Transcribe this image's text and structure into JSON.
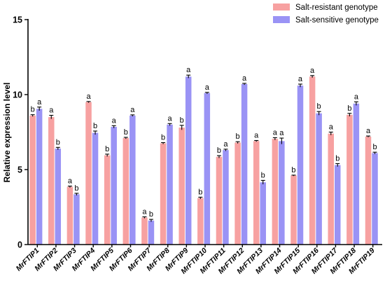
{
  "chart_data": {
    "type": "bar",
    "title": "",
    "xlabel": "",
    "ylabel": "Relative expression level",
    "ylim": [
      0,
      15
    ],
    "yticks": [
      0,
      5,
      10,
      15
    ],
    "grid": false,
    "legend_position": "top-right",
    "categories": [
      "MrFTIP1",
      "MrFTIP2",
      "MrFTIP3",
      "MrFTIP4",
      "MrFTIP5",
      "MrFTIP6",
      "MrFTIP7",
      "MrFTIP8",
      "MrFTIP9",
      "MrFTIP10",
      "MrFTIP11",
      "MrFTIP12",
      "MrFTIP13",
      "MrFTIP14",
      "MrFTIP15",
      "MrFTIP16",
      "MrFTIP17",
      "MrFTIP18",
      "MrFTIP19"
    ],
    "series": [
      {
        "name": "Salt-resistant genotype",
        "color": "#f7a1a1",
        "values": [
          8.6,
          8.5,
          3.85,
          9.5,
          5.95,
          7.1,
          1.8,
          6.75,
          7.8,
          3.1,
          5.85,
          6.8,
          6.9,
          7.05,
          4.6,
          11.2,
          7.4,
          8.65,
          7.2
        ],
        "errors": [
          0.06,
          0.12,
          0.05,
          0.04,
          0.08,
          0.05,
          0.05,
          0.05,
          0.15,
          0.06,
          0.08,
          0.06,
          0.04,
          0.08,
          0.03,
          0.07,
          0.1,
          0.1,
          0.04
        ],
        "significance": [
          "b",
          "a",
          "a",
          "a",
          "b",
          "b",
          "a",
          "b",
          "b",
          "b",
          "b",
          "b",
          "a",
          "a",
          "b",
          "a",
          "a",
          "b",
          "a"
        ]
      },
      {
        "name": "Salt-sensitive genotype",
        "color": "#9a93f5",
        "values": [
          9.05,
          6.4,
          3.35,
          7.45,
          7.85,
          8.6,
          1.6,
          8.0,
          11.2,
          10.1,
          6.3,
          10.7,
          4.15,
          6.9,
          10.6,
          8.75,
          5.3,
          9.4,
          6.1
        ],
        "errors": [
          0.12,
          0.08,
          0.07,
          0.12,
          0.08,
          0.05,
          0.08,
          0.07,
          0.1,
          0.05,
          0.06,
          0.05,
          0.13,
          0.2,
          0.1,
          0.12,
          0.1,
          0.12,
          0.06
        ],
        "significance": [
          "a",
          "b",
          "b",
          "b",
          "a",
          "a",
          "b",
          "a",
          "a",
          "a",
          "a",
          "a",
          "b",
          "a",
          "a",
          "b",
          "b",
          "a",
          "b"
        ]
      }
    ]
  }
}
